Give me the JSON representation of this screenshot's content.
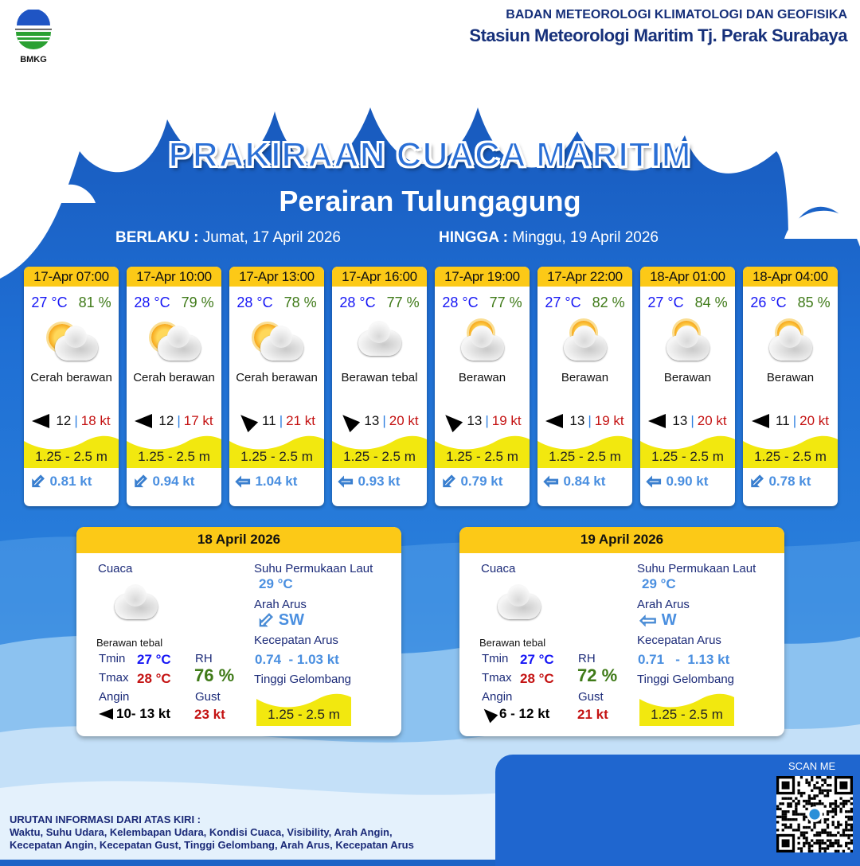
{
  "header": {
    "org": "BADAN METEOROLOGI KLIMATOLOGI DAN GEOFISIKA",
    "station": "Stasiun Meteorologi Maritim Tj. Perak Surabaya",
    "logo_text": "BMKG"
  },
  "title": "PRAKIRAAN CUACA MARITIM",
  "subtitle": "Perairan Tulungagung",
  "validity": {
    "from_label": "BERLAKU :",
    "from": "Jumat, 17 April 2026",
    "to_label": "HINGGA :",
    "to": "Minggu, 19 April 2026"
  },
  "colors": {
    "header_yellow": "#fcc917",
    "wave_yellow": "#f2e80f",
    "temp": "#1616f5",
    "rh": "#3f7a18",
    "gust": "#c41212",
    "current": "#4a8fe0"
  },
  "forecasts": [
    {
      "time": "17-Apr 07:00",
      "temp": "27 °C",
      "rh": "81 %",
      "condition": "Cerah berawan",
      "icon": "partly-sunny-icon",
      "wind_icon": "arrow-left",
      "wind": "12",
      "gust": "18 kt",
      "wave": "1.25 - 2.5 m",
      "current_icon": "arrow-down-left",
      "current": "0.81 kt"
    },
    {
      "time": "17-Apr 10:00",
      "temp": "28 °C",
      "rh": "79 %",
      "condition": "Cerah berawan",
      "icon": "partly-sunny-icon",
      "wind_icon": "arrow-left",
      "wind": "12",
      "gust": "17 kt",
      "wave": "1.25 - 2.5 m",
      "current_icon": "arrow-down-left",
      "current": "0.94 kt"
    },
    {
      "time": "17-Apr 13:00",
      "temp": "28 °C",
      "rh": "78 %",
      "condition": "Cerah berawan",
      "icon": "partly-sunny-icon",
      "wind_icon": "arrow-up-left",
      "wind": "11",
      "gust": "21 kt",
      "wave": "1.25 - 2.5 m",
      "current_icon": "arrow-left",
      "current": "1.04 kt"
    },
    {
      "time": "17-Apr 16:00",
      "temp": "28 °C",
      "rh": "77 %",
      "condition": "Berawan tebal",
      "icon": "cloud-icon",
      "wind_icon": "arrow-up-left",
      "wind": "13",
      "gust": "20 kt",
      "wave": "1.25 - 2.5 m",
      "current_icon": "arrow-left",
      "current": "0.93 kt"
    },
    {
      "time": "17-Apr 19:00",
      "temp": "28 °C",
      "rh": "77 %",
      "condition": "Berawan",
      "icon": "mostly-cloudy-icon",
      "wind_icon": "arrow-up-left",
      "wind": "13",
      "gust": "19 kt",
      "wave": "1.25 - 2.5 m",
      "current_icon": "arrow-down-left",
      "current": "0.79 kt"
    },
    {
      "time": "17-Apr 22:00",
      "temp": "27 °C",
      "rh": "82 %",
      "condition": "Berawan",
      "icon": "mostly-cloudy-icon",
      "wind_icon": "arrow-left",
      "wind": "13",
      "gust": "19 kt",
      "wave": "1.25 - 2.5 m",
      "current_icon": "arrow-left",
      "current": "0.84 kt"
    },
    {
      "time": "18-Apr 01:00",
      "temp": "27 °C",
      "rh": "84 %",
      "condition": "Berawan",
      "icon": "mostly-cloudy-icon",
      "wind_icon": "arrow-left",
      "wind": "13",
      "gust": "20 kt",
      "wave": "1.25 - 2.5 m",
      "current_icon": "arrow-left",
      "current": "0.90 kt"
    },
    {
      "time": "18-Apr 04:00",
      "temp": "26 °C",
      "rh": "85 %",
      "condition": "Berawan",
      "icon": "mostly-cloudy-icon",
      "wind_icon": "arrow-left",
      "wind": "11",
      "gust": "20 kt",
      "wave": "1.25 - 2.5 m",
      "current_icon": "arrow-down-left",
      "current": "0.78 kt"
    }
  ],
  "daily": [
    {
      "date": "18 April 2026",
      "cuaca_label": "Cuaca",
      "condition": "Berawan tebal",
      "tmin_label": "Tmin",
      "tmin": "27 °C",
      "tmax_label": "Tmax",
      "tmax": "28 °C",
      "rh_label": "RH",
      "rh": "76 %",
      "angin_label": "Angin",
      "wind_icon": "arrow-left",
      "wind": "10- 13 kt",
      "gust_label": "Gust",
      "gust": "23 kt",
      "sst_label": "Suhu Permukaan Laut",
      "sst": "29 °C",
      "arus_label": "Arah Arus",
      "current_icon": "arrow-down-left",
      "arus": "SW",
      "kec_label": "Kecepatan Arus",
      "kec": "0.74  - 1.03 kt",
      "gel_label": "Tinggi Gelombang",
      "wave": "1.25 - 2.5 m"
    },
    {
      "date": "19 April 2026",
      "cuaca_label": "Cuaca",
      "condition": "Berawan tebal",
      "tmin_label": "Tmin",
      "tmin": "27 °C",
      "tmax_label": "Tmax",
      "tmax": "28 °C",
      "rh_label": "RH",
      "rh": "72 %",
      "angin_label": "Angin",
      "wind_icon": "arrow-up-left",
      "wind": "6  - 12 kt",
      "gust_label": "Gust",
      "gust": "21 kt",
      "sst_label": "Suhu Permukaan Laut",
      "sst": "29 °C",
      "arus_label": "Arah Arus",
      "current_icon": "arrow-left",
      "arus": "W",
      "kec_label": "Kecepatan Arus",
      "kec": "0.71   -  1.13 kt",
      "gel_label": "Tinggi Gelombang",
      "wave": "1.25 - 2.5 m"
    }
  ],
  "footer": {
    "line1": "URUTAN INFORMASI DARI ATAS KIRI :",
    "line2": "Waktu, Suhu Udara, Kelembapan Udara, Kondisi Cuaca, Visibility, Arah Angin,",
    "line3": "Kecepatan Angin, Kecepatan Gust, Tinggi Gelombang, Arah Arus, Kecepatan Arus"
  },
  "qr": {
    "label": "SCAN ME"
  }
}
